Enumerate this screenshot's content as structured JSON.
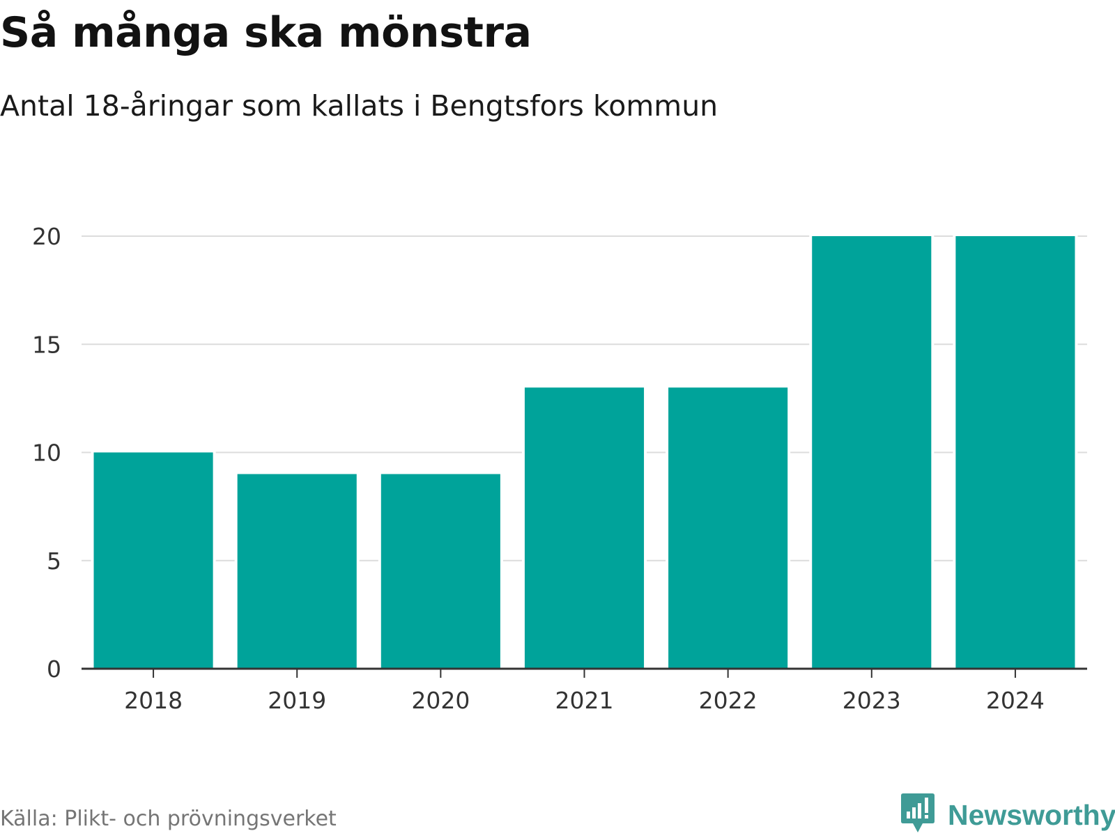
{
  "header": {
    "title": "Så många ska mönstra",
    "subtitle": "Antal 18-åringar som kallats i Bengtsfors kommun"
  },
  "footer": {
    "source": "Källa: Plikt- och prövningsverket",
    "brand": "Newsworthy",
    "brand_icon": "newsworthy-logo-icon"
  },
  "colors": {
    "bar": "#00a39a",
    "grid": "#dcdcdc",
    "axis": "#333333",
    "brand": "#3f9b96"
  },
  "chart_data": {
    "type": "bar",
    "title": "Så många ska mönstra",
    "subtitle": "Antal 18-åringar som kallats i Bengtsfors kommun",
    "xlabel": "",
    "ylabel": "",
    "categories": [
      "2018",
      "2019",
      "2020",
      "2021",
      "2022",
      "2023",
      "2024"
    ],
    "values": [
      10,
      9,
      9,
      13,
      13,
      20,
      20
    ],
    "ylim": [
      0,
      20
    ],
    "yticks": [
      0,
      5,
      10,
      15,
      20
    ],
    "grid": true,
    "legend": "none"
  }
}
